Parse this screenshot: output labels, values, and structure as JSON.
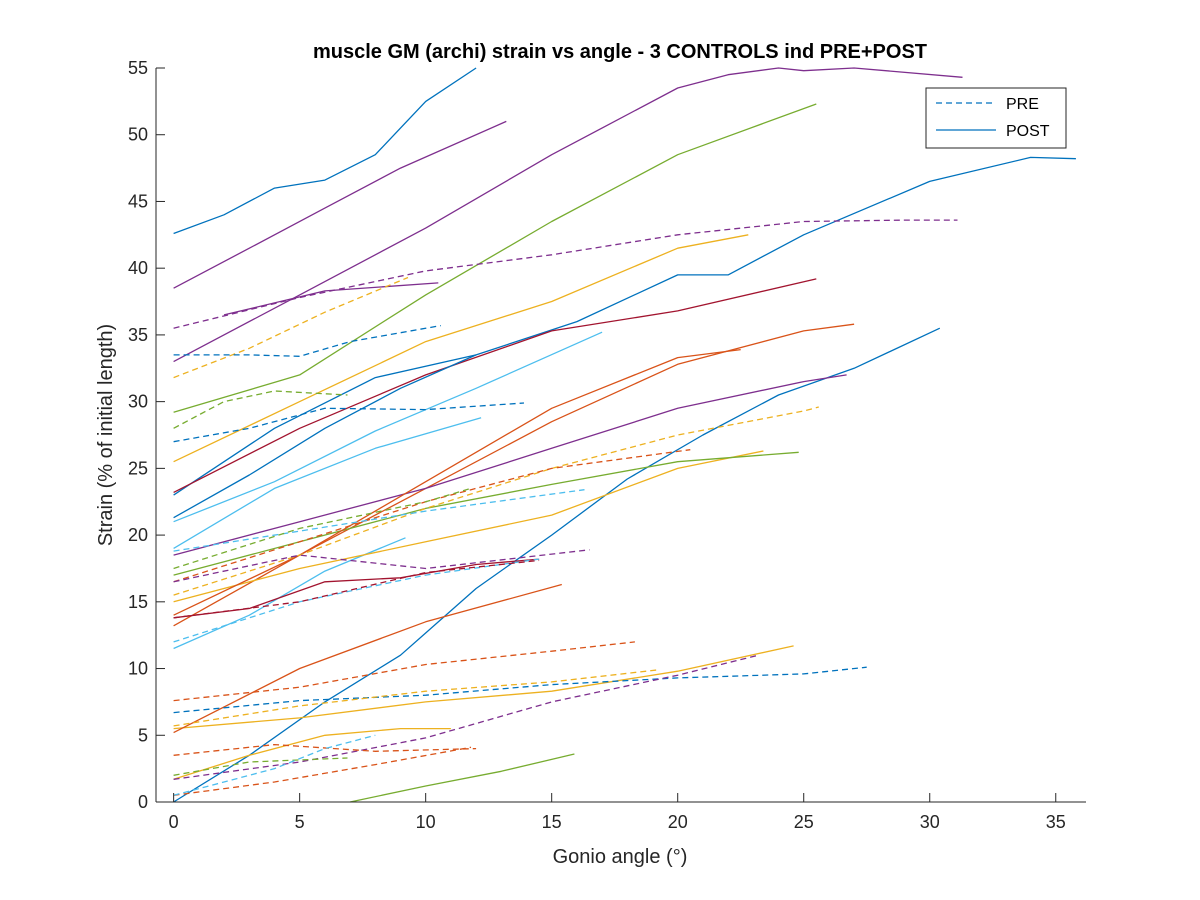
{
  "chart_data": {
    "type": "line",
    "title": "muscle GM (archi) strain vs angle - 3 CONTROLS ind PRE+POST",
    "xlabel": "Gonio angle (°)",
    "ylabel": "Strain (% of initial length)",
    "xlim": [
      -0.7,
      36.2
    ],
    "ylim": [
      0,
      55
    ],
    "xticks": [
      0,
      5,
      10,
      15,
      20,
      25,
      30,
      35
    ],
    "yticks": [
      0,
      5,
      10,
      15,
      20,
      25,
      30,
      35,
      40,
      45,
      50,
      55
    ],
    "grid": false,
    "legend": {
      "position": "top-right",
      "entries": [
        {
          "label": "PRE",
          "style": "dashed",
          "color": "#0072BD"
        },
        {
          "label": "POST",
          "style": "solid",
          "color": "#0072BD"
        }
      ]
    },
    "colors": {
      "blue": "#0072BD",
      "orange": "#D95319",
      "yellow": "#EDB120",
      "purple": "#7E2F8E",
      "green": "#77AC30",
      "lightblue": "#4DBEEE",
      "darkred": "#A2142F"
    },
    "series": [
      {
        "group": "POST",
        "color": "#0072BD",
        "x": [
          0,
          2,
          4,
          6,
          8,
          10,
          12
        ],
        "y": [
          42.6,
          44,
          46,
          46.6,
          48.5,
          52.5,
          55
        ]
      },
      {
        "group": "POST",
        "color": "#7E2F8E",
        "x": [
          0,
          3,
          6,
          9,
          13.2
        ],
        "y": [
          38.5,
          41.5,
          44.5,
          47.5,
          51
        ]
      },
      {
        "group": "POST",
        "color": "#7E2F8E",
        "x": [
          0,
          5,
          10,
          15,
          20,
          22,
          24,
          25,
          27,
          31.3
        ],
        "y": [
          33,
          38,
          43,
          48.5,
          53.5,
          54.5,
          55,
          54.8,
          55,
          54.3
        ]
      },
      {
        "group": "POST",
        "color": "#77AC30",
        "x": [
          0,
          5,
          10,
          15,
          20,
          25.5
        ],
        "y": [
          29.2,
          32,
          38,
          43.5,
          48.5,
          52.3
        ]
      },
      {
        "group": "POST",
        "color": "#EDB120",
        "x": [
          0,
          5,
          10,
          15,
          20,
          22.8
        ],
        "y": [
          25.5,
          30,
          34.5,
          37.5,
          41.5,
          42.5
        ]
      },
      {
        "group": "POST",
        "color": "#0072BD",
        "x": [
          0,
          4,
          8,
          12,
          16,
          20,
          22,
          25,
          30,
          34,
          35.8
        ],
        "y": [
          23,
          28,
          31.8,
          33.5,
          36,
          39.5,
          39.5,
          42.5,
          46.5,
          48.3,
          48.2
        ]
      },
      {
        "group": "POST",
        "color": "#D95319",
        "x": [
          0,
          5,
          10,
          15,
          20,
          25,
          27
        ],
        "y": [
          13.2,
          18.5,
          23.5,
          28.5,
          32.8,
          35.3,
          35.8
        ]
      },
      {
        "group": "POST",
        "color": "#0072BD",
        "x": [
          0,
          3,
          6,
          9,
          12,
          15,
          18,
          21,
          24,
          27,
          30.4
        ],
        "y": [
          0,
          3.5,
          7.5,
          11,
          16,
          20,
          24.2,
          27.5,
          30.5,
          32.5,
          35.5
        ]
      },
      {
        "group": "POST",
        "color": "#7E2F8E",
        "x": [
          0,
          5,
          10,
          15,
          20,
          25,
          26.7
        ],
        "y": [
          18.5,
          21,
          23.5,
          26.5,
          29.5,
          31.5,
          32
        ]
      },
      {
        "group": "POST",
        "color": "#A2142F",
        "x": [
          0,
          5,
          10,
          15,
          20,
          25.5
        ],
        "y": [
          23.2,
          28,
          32,
          35.3,
          36.8,
          39.2
        ]
      },
      {
        "group": "POST",
        "color": "#EDB120",
        "x": [
          0,
          5,
          10,
          15,
          20,
          24.6
        ],
        "y": [
          5.5,
          6.3,
          7.5,
          8.3,
          9.8,
          11.7
        ]
      },
      {
        "group": "POST",
        "color": "#77AC30",
        "x": [
          7,
          10,
          13,
          15.9
        ],
        "y": [
          0,
          1.2,
          2.3,
          3.6
        ]
      },
      {
        "group": "POST",
        "color": "#D95319",
        "x": [
          0,
          5,
          10,
          15.4
        ],
        "y": [
          5.2,
          10,
          13.5,
          16.3
        ]
      },
      {
        "group": "POST",
        "color": "#4DBEEE",
        "x": [
          0,
          4,
          8,
          12,
          17
        ],
        "y": [
          21,
          24,
          27.8,
          31,
          35.2
        ]
      },
      {
        "group": "POST",
        "color": "#4DBEEE",
        "x": [
          0,
          3,
          6,
          9.2
        ],
        "y": [
          11.5,
          14,
          17.3,
          19.8
        ]
      },
      {
        "group": "POST",
        "color": "#EDB120",
        "x": [
          0,
          5,
          10,
          15,
          20,
          23.4
        ],
        "y": [
          15,
          17.5,
          19.5,
          21.5,
          25,
          26.3
        ]
      },
      {
        "group": "POST",
        "color": "#A2142F",
        "x": [
          0,
          3,
          6,
          9,
          12,
          14.5
        ],
        "y": [
          13.8,
          14.5,
          16.5,
          16.8,
          17.8,
          18.2
        ]
      },
      {
        "group": "POST",
        "color": "#4DBEEE",
        "x": [
          0,
          4,
          8,
          12.2
        ],
        "y": [
          19,
          23.5,
          26.5,
          28.8
        ]
      },
      {
        "group": "POST",
        "color": "#77AC30",
        "x": [
          0,
          5,
          10,
          15,
          20,
          24.8
        ],
        "y": [
          17,
          19.5,
          22,
          23.8,
          25.5,
          26.2
        ]
      },
      {
        "group": "POST",
        "color": "#0072BD",
        "x": [
          0,
          3,
          6,
          9,
          12
        ],
        "y": [
          21.3,
          24.5,
          28,
          31,
          33.5
        ]
      },
      {
        "group": "POST",
        "color": "#7E2F8E",
        "x": [
          2,
          6,
          10.5
        ],
        "y": [
          36.5,
          38.3,
          38.9
        ]
      },
      {
        "group": "POST",
        "color": "#D95319",
        "x": [
          0,
          5,
          10,
          15,
          20,
          22.5
        ],
        "y": [
          14,
          18.5,
          24,
          29.5,
          33.3,
          33.9
        ]
      },
      {
        "group": "POST",
        "color": "#EDB120",
        "x": [
          0,
          3,
          6,
          9,
          11
        ],
        "y": [
          1.7,
          3.5,
          5,
          5.5,
          5.5
        ]
      },
      {
        "group": "PRE",
        "color": "#7E2F8E",
        "x": [
          0,
          5,
          10,
          15,
          20,
          25,
          29,
          31.1
        ],
        "y": [
          35.5,
          37.8,
          39.8,
          41,
          42.5,
          43.5,
          43.6,
          43.6
        ]
      },
      {
        "group": "PRE",
        "color": "#EDB120",
        "x": [
          0,
          3,
          6,
          9.3
        ],
        "y": [
          31.8,
          34,
          36.7,
          39.3
        ]
      },
      {
        "group": "PRE",
        "color": "#0072BD",
        "x": [
          0,
          3,
          5,
          7,
          10.6
        ],
        "y": [
          33.5,
          33.5,
          33.4,
          34.5,
          35.7
        ]
      },
      {
        "group": "PRE",
        "color": "#0072BD",
        "x": [
          0,
          3,
          6,
          10,
          13.9
        ],
        "y": [
          27,
          28,
          29.5,
          29.4,
          29.9
        ]
      },
      {
        "group": "PRE",
        "color": "#77AC30",
        "x": [
          0,
          2,
          4,
          6.9
        ],
        "y": [
          28,
          30,
          30.8,
          30.5
        ]
      },
      {
        "group": "PRE",
        "color": "#EDB120",
        "x": [
          0,
          5,
          10,
          15,
          20,
          25,
          25.6
        ],
        "y": [
          15.5,
          18.5,
          22,
          25,
          27.5,
          29.3,
          29.6
        ]
      },
      {
        "group": "PRE",
        "color": "#D95319",
        "x": [
          0,
          5,
          10,
          15,
          20.5
        ],
        "y": [
          16.5,
          19.5,
          22.5,
          25,
          26.4
        ]
      },
      {
        "group": "PRE",
        "color": "#4DBEEE",
        "x": [
          0,
          5,
          10,
          16.3
        ],
        "y": [
          18.8,
          20.3,
          21.8,
          23.4
        ]
      },
      {
        "group": "PRE",
        "color": "#7E2F8E",
        "x": [
          0,
          5,
          10,
          16.5
        ],
        "y": [
          16.5,
          18.5,
          17.5,
          18.9
        ]
      },
      {
        "group": "PRE",
        "color": "#4DBEEE",
        "x": [
          0,
          5,
          10,
          14.5
        ],
        "y": [
          12,
          15,
          17,
          18.2
        ]
      },
      {
        "group": "PRE",
        "color": "#D95319",
        "x": [
          0,
          5,
          10,
          15,
          18.3
        ],
        "y": [
          7.6,
          8.6,
          10.3,
          11.3,
          12
        ]
      },
      {
        "group": "PRE",
        "color": "#0072BD",
        "x": [
          0,
          5,
          10,
          15,
          20,
          25,
          27.5
        ],
        "y": [
          6.7,
          7.6,
          8,
          8.8,
          9.3,
          9.6,
          10.1
        ]
      },
      {
        "group": "PRE",
        "color": "#EDB120",
        "x": [
          0,
          5,
          10,
          15,
          19.2
        ],
        "y": [
          5.7,
          7.2,
          8.3,
          9,
          9.9
        ]
      },
      {
        "group": "PRE",
        "color": "#7E2F8E",
        "x": [
          0,
          5,
          10,
          15,
          20,
          23.2
        ],
        "y": [
          1.7,
          3,
          4.8,
          7.5,
          9.5,
          11
        ]
      },
      {
        "group": "PRE",
        "color": "#D95319",
        "x": [
          0,
          4,
          8,
          12
        ],
        "y": [
          3.5,
          4.3,
          3.8,
          4
        ]
      },
      {
        "group": "PRE",
        "color": "#77AC30",
        "x": [
          0,
          3,
          6.9
        ],
        "y": [
          2,
          3,
          3.3
        ]
      },
      {
        "group": "PRE",
        "color": "#D95319",
        "x": [
          0,
          4,
          8,
          11.8
        ],
        "y": [
          0.5,
          1.5,
          2.8,
          4.1
        ]
      },
      {
        "group": "PRE",
        "color": "#4DBEEE",
        "x": [
          0,
          2,
          4,
          6,
          8
        ],
        "y": [
          0.5,
          1.5,
          2.5,
          4,
          5
        ]
      },
      {
        "group": "PRE",
        "color": "#77AC30",
        "x": [
          0,
          5,
          10,
          11.8
        ],
        "y": [
          17.5,
          20.5,
          22.5,
          23.5
        ]
      },
      {
        "group": "PRE",
        "color": "#A2142F",
        "x": [
          0,
          5,
          10,
          14.5
        ],
        "y": [
          13.8,
          15,
          17.2,
          18.1
        ]
      }
    ]
  }
}
